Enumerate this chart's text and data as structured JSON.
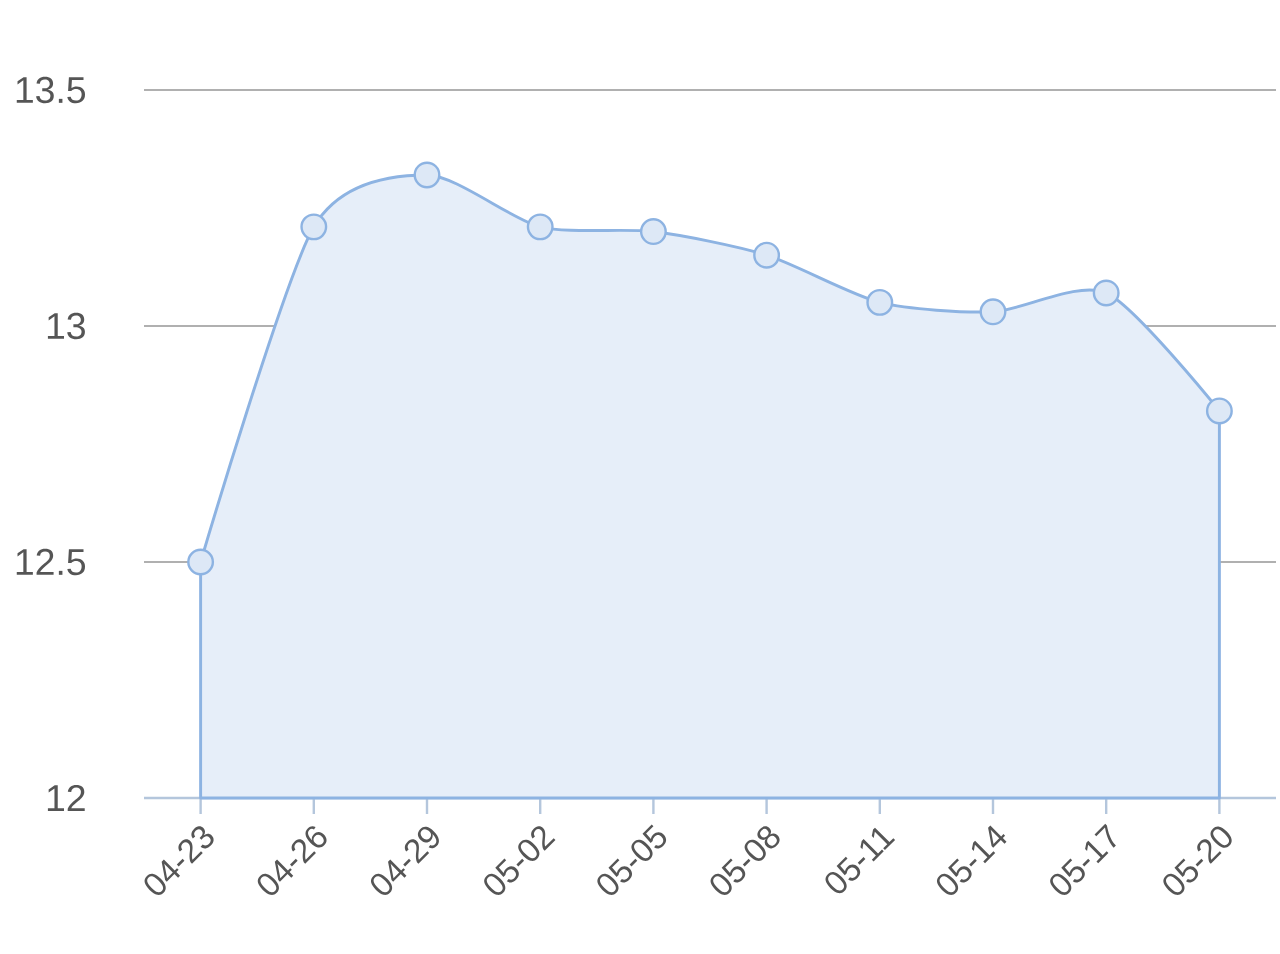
{
  "chart_data": {
    "type": "area",
    "categories": [
      "04-23",
      "04-26",
      "04-29",
      "05-02",
      "05-05",
      "05-08",
      "05-11",
      "05-14",
      "05-17",
      "05-20"
    ],
    "values": [
      12.5,
      13.21,
      13.32,
      13.21,
      13.2,
      13.15,
      13.05,
      13.03,
      13.07,
      12.82
    ],
    "color": "#8db3e2",
    "ylim": [
      12,
      13.5
    ],
    "yticks": [
      12,
      12.5,
      13,
      13.5
    ],
    "grid": "y",
    "marker": "circle"
  }
}
